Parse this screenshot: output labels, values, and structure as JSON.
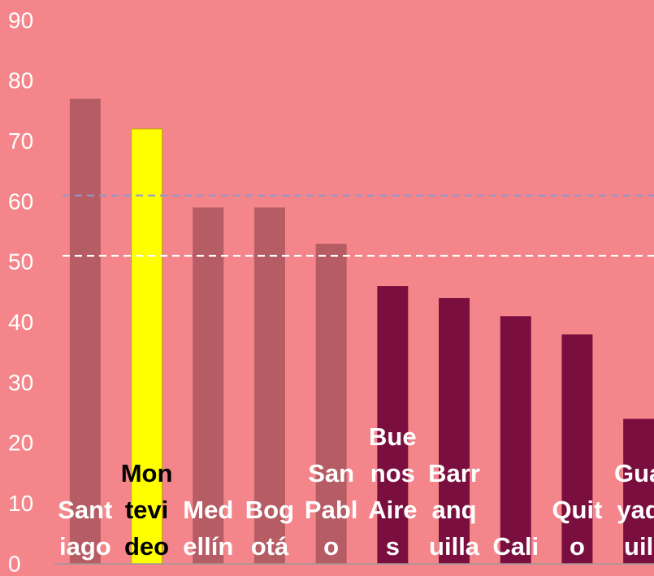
{
  "chart_data": {
    "type": "bar",
    "categories": [
      "Santiago",
      "Montevideo",
      "Medellín",
      "Bogotá",
      "San Pablo",
      "Buenos Aires",
      "Barranquilla",
      "Cali",
      "Quito",
      "Guayaquil"
    ],
    "values": [
      77,
      72,
      59,
      59,
      53,
      46,
      44,
      41,
      38,
      24
    ],
    "colors": [
      "#b55c65",
      "#ffff00",
      "#b55c65",
      "#b55c65",
      "#b55c65",
      "#7a0f3f",
      "#7a0f3f",
      "#7a0f3f",
      "#7a0f3f",
      "#7a0f3f"
    ],
    "label_colors": [
      "#ffffff",
      "#000000",
      "#ffffff",
      "#ffffff",
      "#ffffff",
      "#ffffff",
      "#ffffff",
      "#ffffff",
      "#ffffff",
      "#ffffff"
    ],
    "ylim": [
      0,
      90
    ],
    "yticks": [
      0,
      10,
      20,
      30,
      40,
      50,
      60,
      70,
      80,
      90
    ],
    "reference_lines": [
      {
        "value": 61,
        "color": "#8f98cc"
      },
      {
        "value": 51,
        "color": "#ffffff"
      }
    ]
  }
}
